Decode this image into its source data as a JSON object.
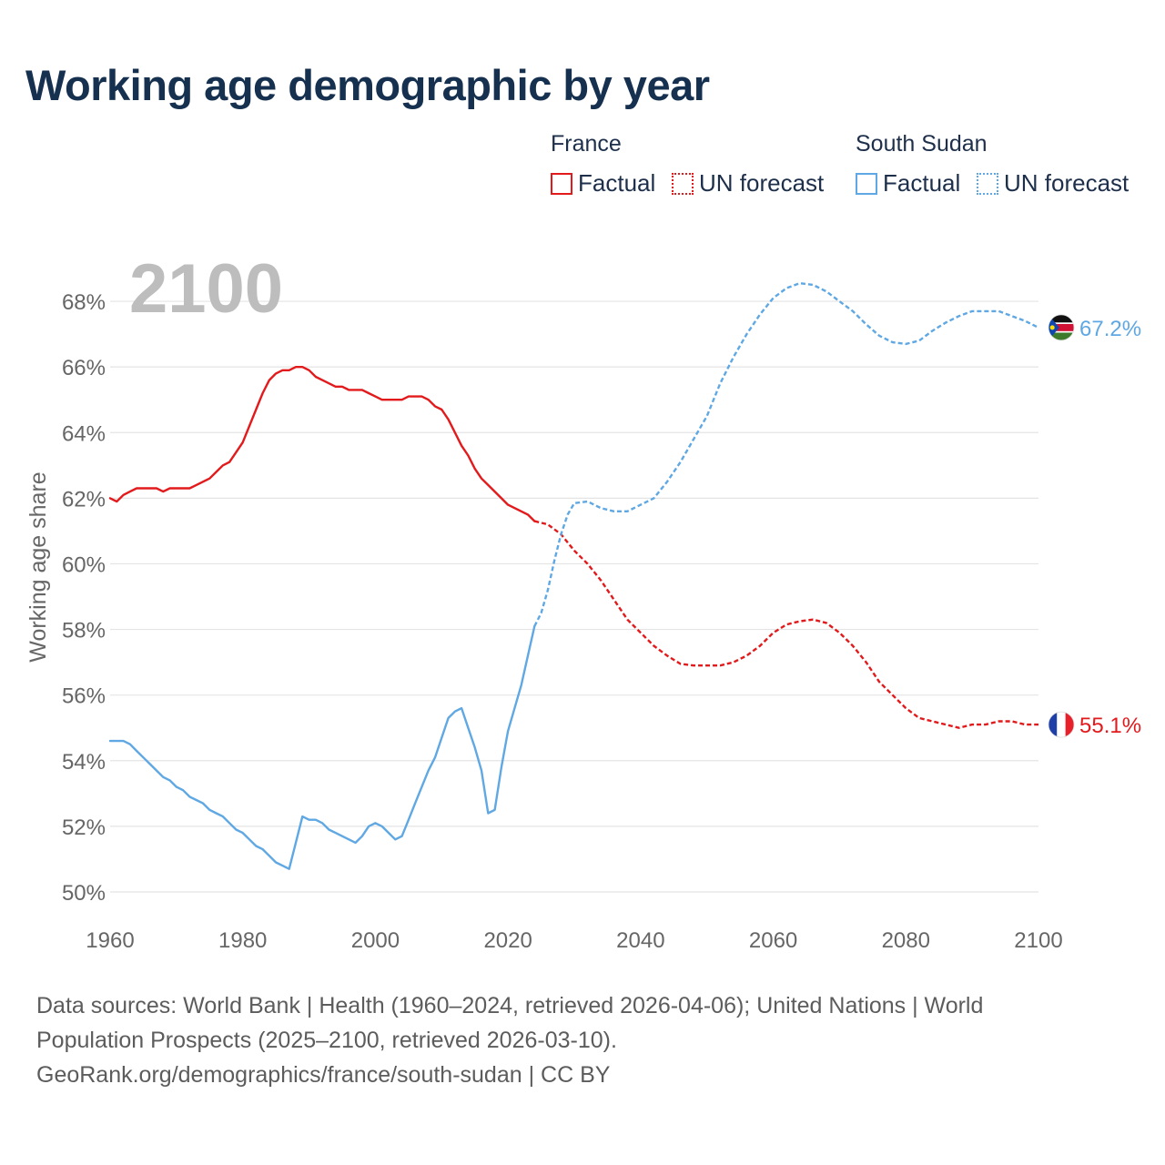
{
  "header": {
    "title": "Working age demographic by year"
  },
  "legend": {
    "groups": [
      {
        "name": "France",
        "color": "#e31a1c",
        "factual_label": "Factual",
        "forecast_label": "UN forecast"
      },
      {
        "name": "South Sudan",
        "color": "#5fa8e3",
        "factual_label": "Factual",
        "forecast_label": "UN forecast"
      }
    ]
  },
  "footer": {
    "line1": "Data sources: World Bank | Health (1960–2024, retrieved 2026-04-06); United Nations | World",
    "line2": "Population Prospects (2025–2100, retrieved 2026-03-10).",
    "line3": "GeoRank.org/demographics/france/south-sudan | CC BY"
  },
  "chart_data": {
    "type": "line",
    "title": "Working age demographic by year",
    "year_label": "2100",
    "xlabel": "",
    "ylabel": "Working age share",
    "xlim": [
      1960,
      2100
    ],
    "ylim": [
      49.5,
      69
    ],
    "x_ticks": [
      1960,
      1980,
      2000,
      2020,
      2040,
      2060,
      2080,
      2100
    ],
    "x_tick_labels": [
      "1960",
      "1980",
      "2000",
      "2020",
      "2040",
      "2060",
      "2080",
      "2100"
    ],
    "y_ticks": [
      50,
      52,
      54,
      56,
      58,
      60,
      62,
      64,
      66,
      68
    ],
    "y_tick_labels": [
      "50%",
      "52%",
      "54%",
      "56%",
      "58%",
      "60%",
      "62%",
      "64%",
      "66%",
      "68%"
    ],
    "grid": true,
    "forecast_start": 2024,
    "series": [
      {
        "name": "France",
        "color": "#e31a1c",
        "end_label": "55.1%",
        "flag": "france",
        "factual": {
          "x": [
            1960,
            1961,
            1962,
            1963,
            1964,
            1965,
            1966,
            1967,
            1968,
            1969,
            1970,
            1971,
            1972,
            1973,
            1974,
            1975,
            1976,
            1977,
            1978,
            1979,
            1980,
            1981,
            1982,
            1983,
            1984,
            1985,
            1986,
            1987,
            1988,
            1989,
            1990,
            1991,
            1992,
            1993,
            1994,
            1995,
            1996,
            1997,
            1998,
            1999,
            2000,
            2001,
            2002,
            2003,
            2004,
            2005,
            2006,
            2007,
            2008,
            2009,
            2010,
            2011,
            2012,
            2013,
            2014,
            2015,
            2016,
            2017,
            2018,
            2019,
            2020,
            2021,
            2022,
            2023,
            2024
          ],
          "y": [
            62.0,
            61.9,
            62.1,
            62.2,
            62.3,
            62.3,
            62.3,
            62.3,
            62.2,
            62.3,
            62.3,
            62.3,
            62.3,
            62.4,
            62.5,
            62.6,
            62.8,
            63.0,
            63.1,
            63.4,
            63.7,
            64.2,
            64.7,
            65.2,
            65.6,
            65.8,
            65.9,
            65.9,
            66.0,
            66.0,
            65.9,
            65.7,
            65.6,
            65.5,
            65.4,
            65.4,
            65.3,
            65.3,
            65.3,
            65.2,
            65.1,
            65.0,
            65.0,
            65.0,
            65.0,
            65.1,
            65.1,
            65.1,
            65.0,
            64.8,
            64.7,
            64.4,
            64.0,
            63.6,
            63.3,
            62.9,
            62.6,
            62.4,
            62.2,
            62.0,
            61.8,
            61.7,
            61.6,
            61.5,
            61.3
          ]
        },
        "forecast": {
          "x": [
            2024,
            2026,
            2028,
            2030,
            2032,
            2034,
            2036,
            2038,
            2040,
            2042,
            2044,
            2046,
            2048,
            2050,
            2052,
            2054,
            2056,
            2058,
            2060,
            2062,
            2064,
            2066,
            2068,
            2070,
            2072,
            2074,
            2076,
            2078,
            2080,
            2082,
            2084,
            2086,
            2088,
            2090,
            2092,
            2094,
            2096,
            2098,
            2100
          ],
          "y": [
            61.3,
            61.2,
            60.9,
            60.4,
            60.0,
            59.5,
            58.9,
            58.3,
            57.9,
            57.5,
            57.2,
            56.95,
            56.9,
            56.9,
            56.9,
            57.0,
            57.2,
            57.5,
            57.9,
            58.15,
            58.25,
            58.3,
            58.2,
            57.9,
            57.5,
            57.0,
            56.4,
            56.0,
            55.6,
            55.3,
            55.2,
            55.1,
            55.0,
            55.1,
            55.1,
            55.2,
            55.2,
            55.1,
            55.1
          ]
        }
      },
      {
        "name": "South Sudan",
        "color": "#5fa8e3",
        "end_label": "67.2%",
        "flag": "south-sudan",
        "factual": {
          "x": [
            1960,
            1961,
            1962,
            1963,
            1964,
            1965,
            1966,
            1967,
            1968,
            1969,
            1970,
            1971,
            1972,
            1973,
            1974,
            1975,
            1976,
            1977,
            1978,
            1979,
            1980,
            1981,
            1982,
            1983,
            1984,
            1985,
            1986,
            1987,
            1988,
            1989,
            1990,
            1991,
            1992,
            1993,
            1994,
            1995,
            1996,
            1997,
            1998,
            1999,
            2000,
            2001,
            2002,
            2003,
            2004,
            2005,
            2006,
            2007,
            2008,
            2009,
            2010,
            2011,
            2012,
            2013,
            2014,
            2015,
            2016,
            2017,
            2018,
            2019,
            2020,
            2021,
            2022,
            2023,
            2024
          ],
          "y": [
            54.6,
            54.6,
            54.6,
            54.5,
            54.3,
            54.1,
            53.9,
            53.7,
            53.5,
            53.4,
            53.2,
            53.1,
            52.9,
            52.8,
            52.7,
            52.5,
            52.4,
            52.3,
            52.1,
            51.9,
            51.8,
            51.6,
            51.4,
            51.3,
            51.1,
            50.9,
            50.8,
            50.7,
            51.5,
            52.3,
            52.2,
            52.2,
            52.1,
            51.9,
            51.8,
            51.7,
            51.6,
            51.5,
            51.7,
            52.0,
            52.1,
            52.0,
            51.8,
            51.6,
            51.7,
            52.2,
            52.7,
            53.2,
            53.7,
            54.1,
            54.7,
            55.3,
            55.5,
            55.6,
            55.0,
            54.4,
            53.7,
            52.4,
            52.5,
            53.8,
            54.9,
            55.6,
            56.3,
            57.2,
            58.1
          ]
        },
        "forecast": {
          "x": [
            2024,
            2025,
            2026,
            2027,
            2028,
            2029,
            2030,
            2032,
            2034,
            2036,
            2038,
            2040,
            2042,
            2044,
            2046,
            2048,
            2050,
            2052,
            2054,
            2056,
            2058,
            2060,
            2062,
            2064,
            2066,
            2068,
            2070,
            2072,
            2074,
            2076,
            2078,
            2080,
            2082,
            2084,
            2086,
            2088,
            2090,
            2092,
            2094,
            2096,
            2098,
            2100
          ],
          "y": [
            58.1,
            58.5,
            59.2,
            60.1,
            60.9,
            61.5,
            61.85,
            61.9,
            61.7,
            61.6,
            61.6,
            61.8,
            62.0,
            62.5,
            63.1,
            63.8,
            64.5,
            65.5,
            66.3,
            67.0,
            67.6,
            68.1,
            68.4,
            68.55,
            68.5,
            68.3,
            68.0,
            67.7,
            67.3,
            66.95,
            66.75,
            66.7,
            66.8,
            67.1,
            67.35,
            67.55,
            67.7,
            67.7,
            67.7,
            67.55,
            67.4,
            67.2
          ]
        }
      }
    ]
  }
}
